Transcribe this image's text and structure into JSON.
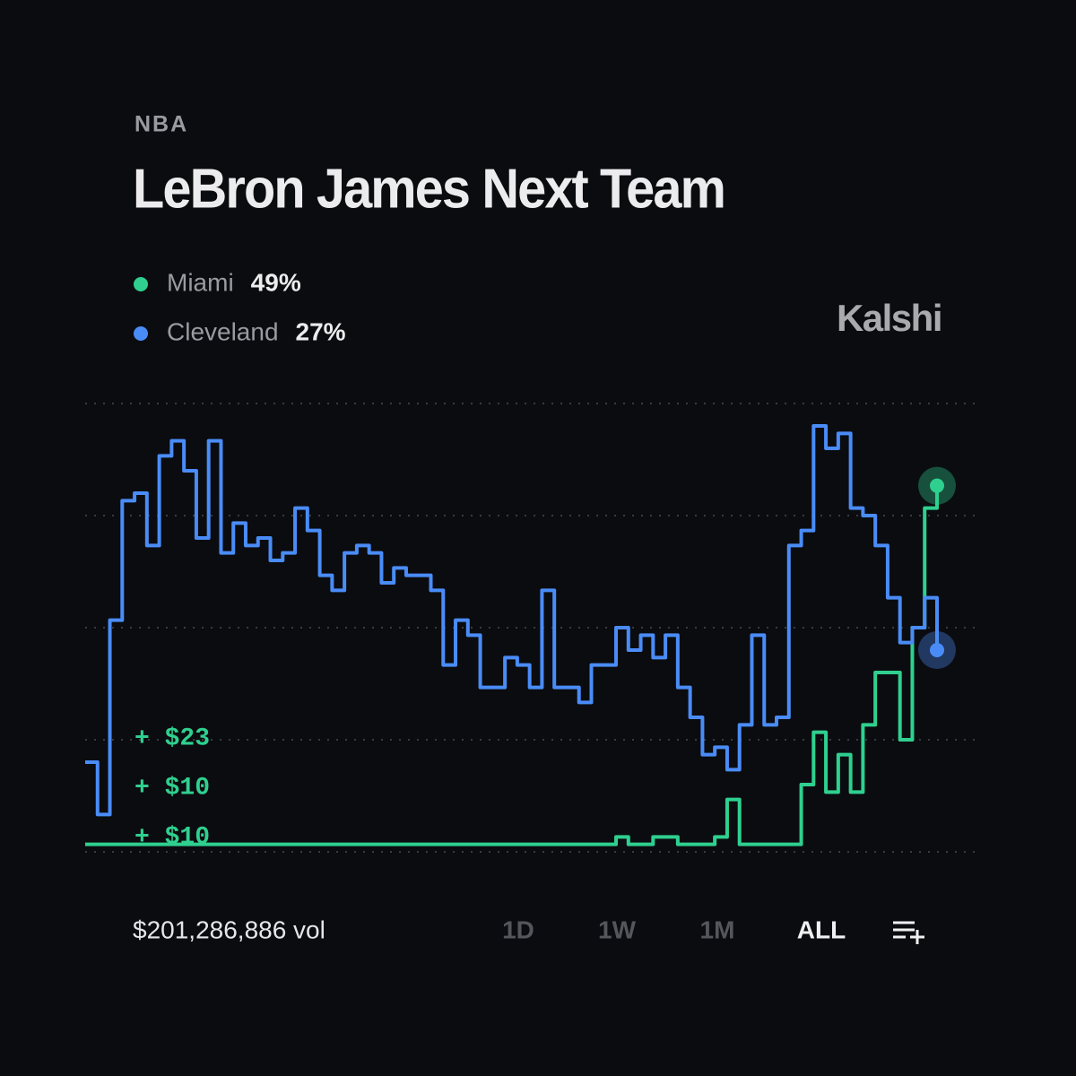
{
  "category": "NBA",
  "brand": "Kalshi",
  "volume": "$201,286,886 vol",
  "ranges": [
    "1D",
    "1W",
    "1M",
    "ALL"
  ],
  "active_range": "ALL",
  "trades": [
    "+ $23",
    "+ $10",
    "+ $10"
  ],
  "chart_data": {
    "type": "line",
    "title": "LeBron James Next Team",
    "ylim": [
      0,
      60
    ],
    "ygrid": [
      0,
      15,
      30,
      45,
      60
    ],
    "series": [
      {
        "name": "Miami",
        "color": "#2fd08f",
        "value_label": "49%",
        "values": [
          1,
          1,
          1,
          1,
          1,
          1,
          1,
          1,
          1,
          1,
          1,
          1,
          1,
          1,
          1,
          1,
          1,
          1,
          1,
          1,
          1,
          1,
          1,
          1,
          1,
          1,
          1,
          1,
          1,
          1,
          1,
          1,
          1,
          1,
          1,
          1,
          1,
          1,
          1,
          1,
          1,
          1,
          1,
          2,
          1,
          1,
          2,
          2,
          1,
          1,
          1,
          2,
          7,
          1,
          1,
          1,
          1,
          1,
          9,
          16,
          8,
          13,
          8,
          17,
          24,
          24,
          15,
          30,
          46,
          49
        ]
      },
      {
        "name": "Cleveland",
        "color": "#4a8cf7",
        "value_label": "27%",
        "values": [
          12,
          5,
          31,
          47,
          48,
          41,
          53,
          55,
          51,
          42,
          55,
          40,
          44,
          41,
          42,
          39,
          40,
          46,
          43,
          37,
          35,
          40,
          41,
          40,
          36,
          38,
          37,
          37,
          35,
          25,
          31,
          29,
          22,
          22,
          26,
          25,
          22,
          35,
          22,
          22,
          20,
          25,
          25,
          30,
          27,
          29,
          26,
          29,
          22,
          18,
          13,
          14,
          11,
          17,
          29,
          17,
          18,
          41,
          43,
          57,
          54,
          56,
          46,
          45,
          41,
          34,
          28,
          30,
          34,
          27
        ]
      }
    ]
  }
}
